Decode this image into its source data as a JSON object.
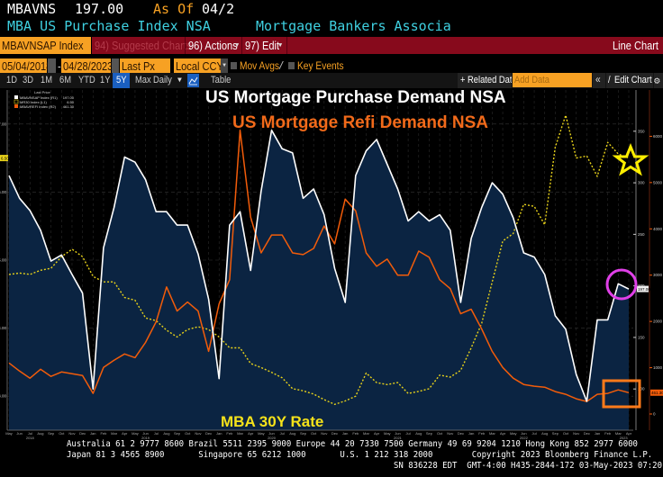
{
  "header": {
    "ticker": "MBAVNS",
    "price": "197.00",
    "as_of_label": "As Of",
    "as_of_value": "04/2",
    "description": "MBA US Purchase Index NSA",
    "source": "Mortgage Bankers Associa"
  },
  "toolbar": {
    "security": "MBAVNSAP Index",
    "suggested": "94) Suggested Charts",
    "actions": "96) Actions",
    "edit": "97) Edit",
    "chart_type": "Line Chart",
    "start_date": "05/04/2018",
    "end_date": "04/28/2023",
    "date_sep": "-",
    "field": "Last Px",
    "currency": "Local CCY",
    "mov_avgs": "Mov Avgs",
    "key_events": "Key Events",
    "ranges": [
      "1D",
      "3D",
      "1M",
      "6M",
      "YTD",
      "1Y",
      "5Y",
      "Max"
    ],
    "selected_range": "5Y",
    "frequency": "Daily",
    "table": "Table",
    "related_data": "+ Related Dat",
    "add_data_placeholder": "Add Data",
    "collapse": "«",
    "edit_chart": "Edit Chart"
  },
  "colors": {
    "purchase": "#ffffff",
    "refi": "#f25c0a",
    "rate": "#e8d21a",
    "area_fill": "#0b2442",
    "toolbar_bg": "#870a1c",
    "accent_orange": "#f7a123"
  },
  "annotations": {
    "purchase_title": "US Mortgage Purchase Demand NSA",
    "refi_title": "US Mortgage Refi Demand NSA",
    "rate_title": "MBA 30Y Rate"
  },
  "chart_data": {
    "type": "line",
    "legend_title": "Last Price",
    "legend": [
      {
        "label": "MBAVNSAP Index (R1)",
        "value": "197.00"
      },
      {
        "label": "MR30 Index (L1)",
        "value": "6.50"
      },
      {
        "label": "MBAVREFI Index (R2)",
        "value": "461.30"
      }
    ],
    "legend_placement": "top-left",
    "grid": true,
    "x": [
      "2018-05",
      "2018-06",
      "2018-07",
      "2018-08",
      "2018-09",
      "2018-10",
      "2018-11",
      "2018-12",
      "2019-01",
      "2019-02",
      "2019-03",
      "2019-04",
      "2019-05",
      "2019-06",
      "2019-07",
      "2019-08",
      "2019-09",
      "2019-10",
      "2019-11",
      "2019-12",
      "2020-01",
      "2020-02",
      "2020-03",
      "2020-04",
      "2020-05",
      "2020-06",
      "2020-07",
      "2020-08",
      "2020-09",
      "2020-10",
      "2020-11",
      "2020-12",
      "2021-01",
      "2021-02",
      "2021-03",
      "2021-04",
      "2021-05",
      "2021-06",
      "2021-07",
      "2021-08",
      "2021-09",
      "2021-10",
      "2021-11",
      "2021-12",
      "2022-01",
      "2022-02",
      "2022-03",
      "2022-04",
      "2022-05",
      "2022-06",
      "2022-07",
      "2022-08",
      "2022-09",
      "2022-10",
      "2022-11",
      "2022-12",
      "2023-01",
      "2023-02",
      "2023-03",
      "2023-04"
    ],
    "x_tick_labels": [
      "May",
      "Jun",
      "Jul",
      "Aug",
      "Sep",
      "Oct",
      "Nov",
      "Dec",
      "Jan",
      "Feb",
      "Mar",
      "Apr",
      "May",
      "Jun",
      "Jul",
      "Aug",
      "Sep",
      "Oct",
      "Nov",
      "Dec",
      "Jan",
      "Feb",
      "Mar",
      "Apr",
      "May",
      "Jun",
      "Jul",
      "Aug",
      "Sep",
      "Oct",
      "Nov",
      "Dec",
      "Jan",
      "Feb",
      "Mar",
      "Apr",
      "May",
      "Jun",
      "Jul",
      "Aug",
      "Sep",
      "Oct",
      "Nov",
      "Dec",
      "Jan",
      "Feb",
      "Mar",
      "Apr",
      "May",
      "Jun",
      "Jul",
      "Aug",
      "Sep",
      "Oct",
      "Nov",
      "Dec",
      "Jan",
      "Feb",
      "Mar",
      "Apr"
    ],
    "year_labels": [
      {
        "label": "2018",
        "index": 2
      },
      {
        "label": "2019",
        "index": 13
      },
      {
        "label": "2020",
        "index": 25
      },
      {
        "label": "2021",
        "index": 37
      },
      {
        "label": "2022",
        "index": 49
      },
      {
        "label": "2023",
        "index": 58.5
      }
    ],
    "series": [
      {
        "name": "MBAVNSAP Index (R1)",
        "axis": "right1",
        "style": "solid-area",
        "values": [
          307,
          285,
          273,
          254,
          224,
          230,
          211,
          193,
          100,
          237,
          276,
          325,
          320,
          303,
          272,
          272,
          259,
          259,
          231,
          187,
          110,
          259,
          272,
          215,
          292,
          351,
          333,
          329,
          285,
          294,
          269,
          217,
          184,
          307,
          331,
          342,
          318,
          294,
          263,
          272,
          263,
          269,
          254,
          184,
          246,
          276,
          300,
          289,
          266,
          232,
          228,
          211,
          171,
          158,
          114,
          88,
          167,
          167,
          202,
          197
        ]
      },
      {
        "name": "MR30 Index (L1)",
        "axis": "left",
        "style": "dashed",
        "values": [
          4.79,
          4.81,
          4.79,
          4.85,
          4.88,
          5.05,
          5.16,
          5.05,
          4.76,
          4.68,
          4.68,
          4.45,
          4.41,
          4.15,
          4.11,
          3.97,
          3.87,
          3.98,
          4.02,
          3.98,
          3.87,
          3.71,
          3.71,
          3.48,
          3.42,
          3.35,
          3.27,
          3.11,
          3.08,
          3.03,
          2.95,
          2.88,
          2.93,
          3.0,
          3.34,
          3.2,
          3.17,
          3.2,
          3.04,
          3.07,
          3.11,
          3.31,
          3.28,
          3.38,
          3.71,
          4.07,
          4.68,
          5.28,
          5.39,
          5.82,
          5.79,
          5.52,
          6.66,
          7.13,
          6.5,
          6.53,
          6.23,
          6.73,
          6.56,
          6.5
        ]
      },
      {
        "name": "MBAVREFI Index (R2)",
        "axis": "right2",
        "style": "solid",
        "values": [
          1102,
          928,
          774,
          967,
          812,
          909,
          870,
          832,
          445,
          1006,
          1160,
          1296,
          1218,
          1547,
          1992,
          2746,
          2224,
          2418,
          2224,
          1354,
          2379,
          2901,
          6131,
          4255,
          3481,
          3868,
          3868,
          3481,
          3443,
          3578,
          4061,
          3675,
          4642,
          4390,
          3481,
          3191,
          3346,
          2998,
          2998,
          3520,
          3385,
          2901,
          2708,
          2166,
          2263,
          1837,
          1354,
          1006,
          774,
          638,
          600,
          580,
          484,
          425,
          329,
          271,
          425,
          445,
          522,
          461.3
        ]
      }
    ],
    "left_axis": {
      "ticks": [
        "3.00",
        "4.00",
        "5.00",
        "6.00",
        "7.00"
      ],
      "range": [
        2.5,
        7.5
      ],
      "current_label": "6.50"
    },
    "right1_axis": {
      "ticks": [
        "100",
        "150",
        "200",
        "250",
        "300",
        "350"
      ],
      "range": [
        60,
        390
      ],
      "current_label": "197.00"
    },
    "right2_axis": {
      "ticks": [
        "0",
        "1000",
        "2000",
        "3000",
        "4000",
        "5000",
        "6000"
      ],
      "range": [
        -350,
        7000
      ],
      "current_label": "461.30"
    }
  },
  "footer": {
    "line1": "Australia 61 2 9777 8600 Brazil 5511 2395 9000 Europe 44 20 7330 7500 Germany 49 69 9204 1210 Hong Kong 852 2977 6000",
    "line2": "Japan 81 3 4565 8900       Singapore 65 6212 1000       U.S. 1 212 318 2000        Copyright 2023 Bloomberg Finance L.P.",
    "line3": "SN 836228 EDT  GMT-4:00 H435-2844-172 03-May-2023 07:20:43"
  }
}
